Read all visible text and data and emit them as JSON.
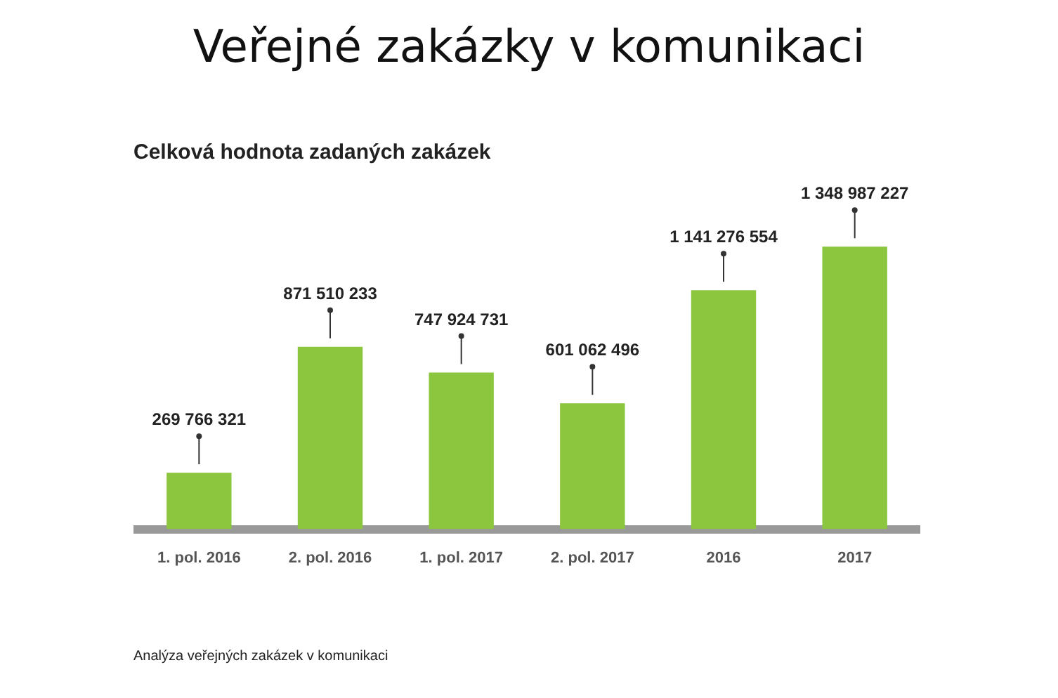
{
  "chart_data": {
    "type": "bar",
    "title": "Veřejné zakázky v komunikaci",
    "subtitle": "Celková hodnota zadaných zakázek",
    "categories": [
      "1. pol. 2016",
      "2. pol. 2016",
      "1. pol. 2017",
      "2. pol. 2017",
      "2016",
      "2017"
    ],
    "values": [
      269766321,
      871510233,
      747924731,
      601062496,
      1141276554,
      1348987227
    ],
    "value_labels": [
      "269 766 321",
      "871 510 233",
      "747 924 731",
      "601 062 496",
      "1 141 276 554",
      "1 348 987 227"
    ],
    "color": "#8cc63f",
    "annotations": [
      "Analýza veřejných zakázek v komunikaci"
    ],
    "grid": false,
    "legend": false
  }
}
